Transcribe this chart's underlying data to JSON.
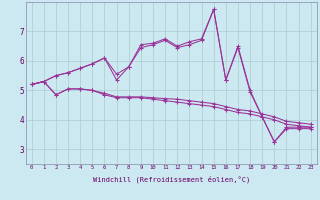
{
  "background_color": "#cce8f0",
  "grid_color": "#aacccc",
  "line_color": "#993399",
  "xlabel": "Windchill (Refroidissement éolien,°C)",
  "xlim": [
    -0.5,
    23.5
  ],
  "ylim": [
    2.5,
    8.0
  ],
  "yticks": [
    3,
    4,
    5,
    6,
    7
  ],
  "xticks": [
    0,
    1,
    2,
    3,
    4,
    5,
    6,
    7,
    8,
    9,
    10,
    11,
    12,
    13,
    14,
    15,
    16,
    17,
    18,
    19,
    20,
    21,
    22,
    23
  ],
  "series": {
    "line_top": {
      "x": [
        0,
        1,
        2,
        3,
        4,
        5,
        6,
        7,
        8,
        9,
        10,
        11,
        12,
        13,
        14,
        15,
        16,
        17,
        18,
        19,
        20,
        21,
        22,
        23
      ],
      "y": [
        5.2,
        5.3,
        5.5,
        5.6,
        5.75,
        5.9,
        6.1,
        5.55,
        5.8,
        6.55,
        6.6,
        6.75,
        6.5,
        6.65,
        6.75,
        7.75,
        5.35,
        6.5,
        5.0,
        4.1,
        3.25,
        3.75,
        3.75,
        3.75
      ]
    },
    "line_top2": {
      "x": [
        0,
        1,
        2,
        3,
        4,
        5,
        6,
        7,
        8,
        9,
        10,
        11,
        12,
        13,
        14,
        15,
        16,
        17,
        18,
        19,
        20,
        21,
        22,
        23
      ],
      "y": [
        5.2,
        5.3,
        5.5,
        5.6,
        5.75,
        5.9,
        6.1,
        5.35,
        5.8,
        6.45,
        6.55,
        6.7,
        6.45,
        6.55,
        6.7,
        7.75,
        5.35,
        6.45,
        4.95,
        4.1,
        3.25,
        3.7,
        3.7,
        3.7
      ]
    },
    "line_bot": {
      "x": [
        0,
        1,
        2,
        3,
        4,
        5,
        6,
        7,
        8,
        9,
        10,
        11,
        12,
        13,
        14,
        15,
        16,
        17,
        18,
        19,
        20,
        21,
        22,
        23
      ],
      "y": [
        5.2,
        5.3,
        4.85,
        5.05,
        5.05,
        5.0,
        4.85,
        4.75,
        4.75,
        4.75,
        4.7,
        4.65,
        4.6,
        4.55,
        4.5,
        4.45,
        4.35,
        4.25,
        4.2,
        4.1,
        4.0,
        3.85,
        3.8,
        3.75
      ]
    },
    "line_bot2": {
      "x": [
        0,
        1,
        2,
        3,
        4,
        5,
        6,
        7,
        8,
        9,
        10,
        11,
        12,
        13,
        14,
        15,
        16,
        17,
        18,
        19,
        20,
        21,
        22,
        23
      ],
      "y": [
        5.2,
        5.3,
        4.85,
        5.05,
        5.05,
        5.0,
        4.9,
        4.78,
        4.78,
        4.78,
        4.75,
        4.72,
        4.7,
        4.65,
        4.6,
        4.55,
        4.45,
        4.35,
        4.3,
        4.2,
        4.1,
        3.95,
        3.9,
        3.85
      ]
    }
  }
}
